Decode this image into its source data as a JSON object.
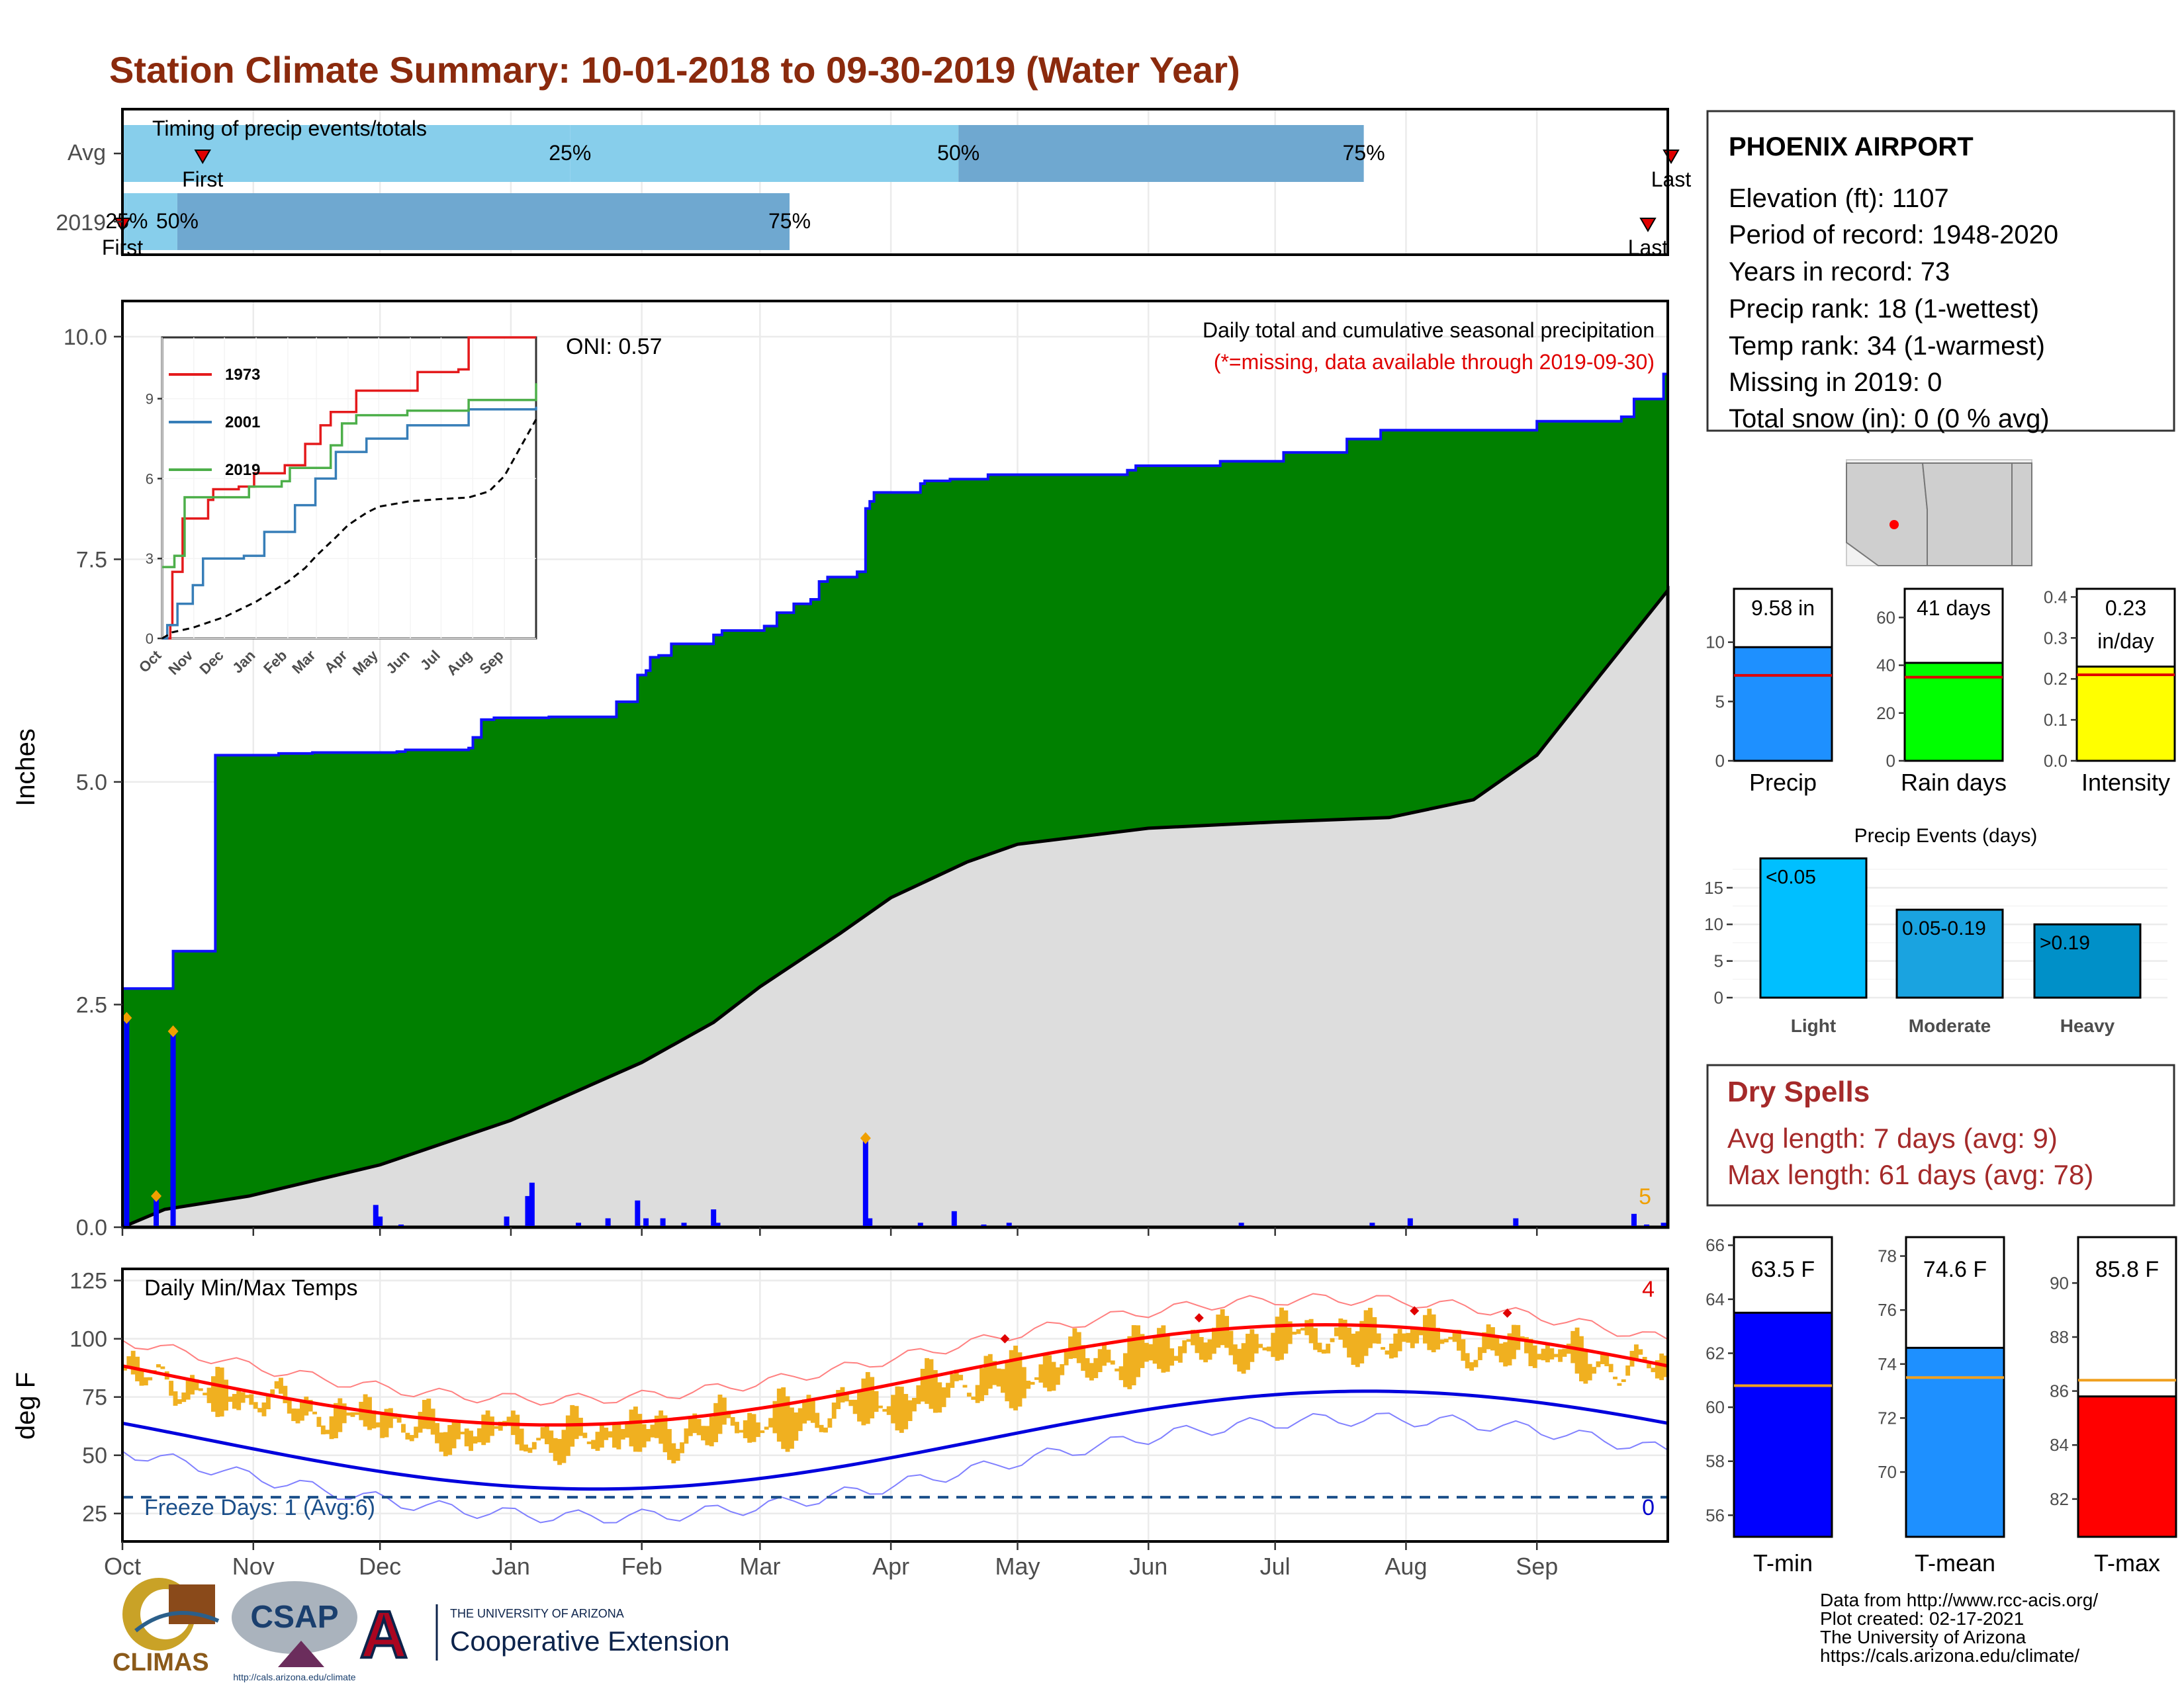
{
  "title": "Station Climate Summary: 10-01-2018 to 09-30-2019 (Water Year)",
  "colors": {
    "title": "#8B2A0D",
    "cum_precip_fill": "#008000",
    "cum_precip_line": "#1010ff",
    "avg_cum_fill": "#dddddd",
    "daily_bars": "#0000ff",
    "temp_bars": "#f0b020",
    "avg_max_line": "#ff0000",
    "avg_min_line": "#0000dd",
    "freeze_line": "#1b4f8a",
    "timing_light": "#87ceeb",
    "timing_dark": "#6fa8d0"
  },
  "months": [
    "Oct",
    "Nov",
    "Dec",
    "Jan",
    "Feb",
    "Mar",
    "Apr",
    "May",
    "Jun",
    "Jul",
    "Aug",
    "Sep"
  ],
  "timing": {
    "title": "Timing of precip events/totals",
    "rows": [
      {
        "label": "Avg",
        "first_day": 19,
        "p25": 106,
        "p50": 198,
        "p75": 294,
        "last_day": 370,
        "first_label": "First",
        "last_label": "Last",
        "p25_label": "25%",
        "p50_label": "50%",
        "p75_label": "75%"
      },
      {
        "label": "2019",
        "first_day": 0,
        "p25": 1,
        "p50": 13,
        "p75": 158,
        "last_day": 393,
        "first_label": "First",
        "last_label": "Last",
        "p25_label": "25%",
        "p50_label": "50%",
        "p75_label": "75%"
      }
    ]
  },
  "precip": {
    "ylabel": "Inches",
    "yticks": [
      "0.0",
      "2.5",
      "5.0",
      "7.5",
      "10.0"
    ],
    "ylim": [
      0,
      10.4
    ],
    "subtitle": "Daily total and cumulative seasonal precipitation",
    "missing_note": "(*=missing, data available through 2019-09-30)",
    "oni": "ONI: 0.57",
    "count_label": "5"
  },
  "inset": {
    "yticks": [
      "0",
      "3",
      "6",
      "9"
    ],
    "xticks": [
      "Oct",
      "Nov",
      "Dec",
      "Jan",
      "Feb",
      "Mar",
      "Apr",
      "May",
      "Jun",
      "Jul",
      "Aug",
      "Sep"
    ],
    "legend": [
      {
        "name": "1973",
        "color": "#e41a1c"
      },
      {
        "name": "2001",
        "color": "#377eb8"
      },
      {
        "name": "2019",
        "color": "#4daf4a"
      }
    ]
  },
  "temps": {
    "ylabel": "deg F",
    "title": "Daily Min/Max Temps",
    "yticks": [
      "25",
      "50",
      "75",
      "100",
      "125"
    ],
    "ylim": [
      13,
      130
    ],
    "freeze_label": "Freeze Days: 1 (Avg:6)",
    "freeze_temp": 32,
    "top_count": "4",
    "bottom_count": "0"
  },
  "station": {
    "name": "PHOENIX AIRPORT",
    "lines": [
      "Elevation (ft): 1107",
      "Period of record: 1948-2020",
      "Years in record: 73",
      "Precip rank: 18 (1-wettest)",
      "Temp rank: 34 (1-warmest)",
      "Missing in 2019: 0",
      "Total snow (in): 0 (0 % avg)"
    ]
  },
  "summary_bars": [
    {
      "xlabel": "Precip",
      "value": 9.58,
      "avg": 7.2,
      "label_line1": "9.58 in",
      "label_line2": "",
      "yticks": [
        "0",
        "5",
        "10"
      ],
      "ylim": [
        0,
        14.5
      ],
      "color": "#1e90ff"
    },
    {
      "xlabel": "Rain days",
      "value": 41,
      "avg": 35,
      "label_line1": "41 days",
      "label_line2": "",
      "yticks": [
        "0",
        "20",
        "40",
        "60"
      ],
      "ylim": [
        0,
        72
      ],
      "color": "#00ff00"
    },
    {
      "xlabel": "Intensity",
      "value": 0.23,
      "avg": 0.21,
      "label_line1": "0.23",
      "label_line2": "in/day",
      "yticks": [
        "0.0",
        "0.1",
        "0.2",
        "0.3",
        "0.4"
      ],
      "ylim": [
        0,
        0.42
      ],
      "color": "#ffff00"
    }
  ],
  "events": {
    "title": "Precip Events (days)",
    "yticks": [
      "0",
      "5",
      "10",
      "15"
    ],
    "ylim": [
      0,
      19.5
    ],
    "bars": [
      {
        "category": "Light",
        "value": 19,
        "label": "<0.05",
        "color": "#00bfff"
      },
      {
        "category": "Moderate",
        "value": 12,
        "label": "0.05-0.19",
        "color": "#1aa3e0"
      },
      {
        "category": "Heavy",
        "value": 10,
        "label": ">0.19",
        "color": "#0090c8"
      }
    ]
  },
  "dry_spells": {
    "title": "Dry Spells",
    "avg_line": "Avg length: 7 days (avg: 9)",
    "max_line": "Max length: 61 days (avg: 78)"
  },
  "temp_bars": [
    {
      "xlabel": "T-min",
      "value": 63.5,
      "avg": 60.8,
      "label": "63.5 F",
      "yticks": [
        "56",
        "58",
        "60",
        "62",
        "64",
        "66"
      ],
      "ylim": [
        55.2,
        66.3
      ],
      "color": "#0000ff"
    },
    {
      "xlabel": "T-mean",
      "value": 74.6,
      "avg": 73.5,
      "label": "74.6 F",
      "yticks": [
        "70",
        "72",
        "74",
        "76",
        "78"
      ],
      "ylim": [
        67.6,
        78.7
      ],
      "color": "#1e90ff"
    },
    {
      "xlabel": "T-max",
      "value": 85.8,
      "avg": 86.4,
      "label": "85.8 F",
      "yticks": [
        "82",
        "84",
        "86",
        "88",
        "90"
      ],
      "ylim": [
        80.6,
        91.7
      ],
      "color": "#ff0000"
    }
  ],
  "footer": {
    "lines": [
      "Data from http://www.rcc-acis.org/",
      "Plot created: 02-17-2021",
      "The University of Arizona",
      "https://cals.arizona.edu/climate/"
    ],
    "logo_climas": "CLIMAS",
    "logo_csap": "CSAP",
    "logo_csap_url": "http://cals.arizona.edu/climate",
    "logo_ua_small": "THE UNIVERSITY OF ARIZONA",
    "logo_ua_big": "Cooperative Extension",
    "logo_ua_letter": "A"
  }
}
